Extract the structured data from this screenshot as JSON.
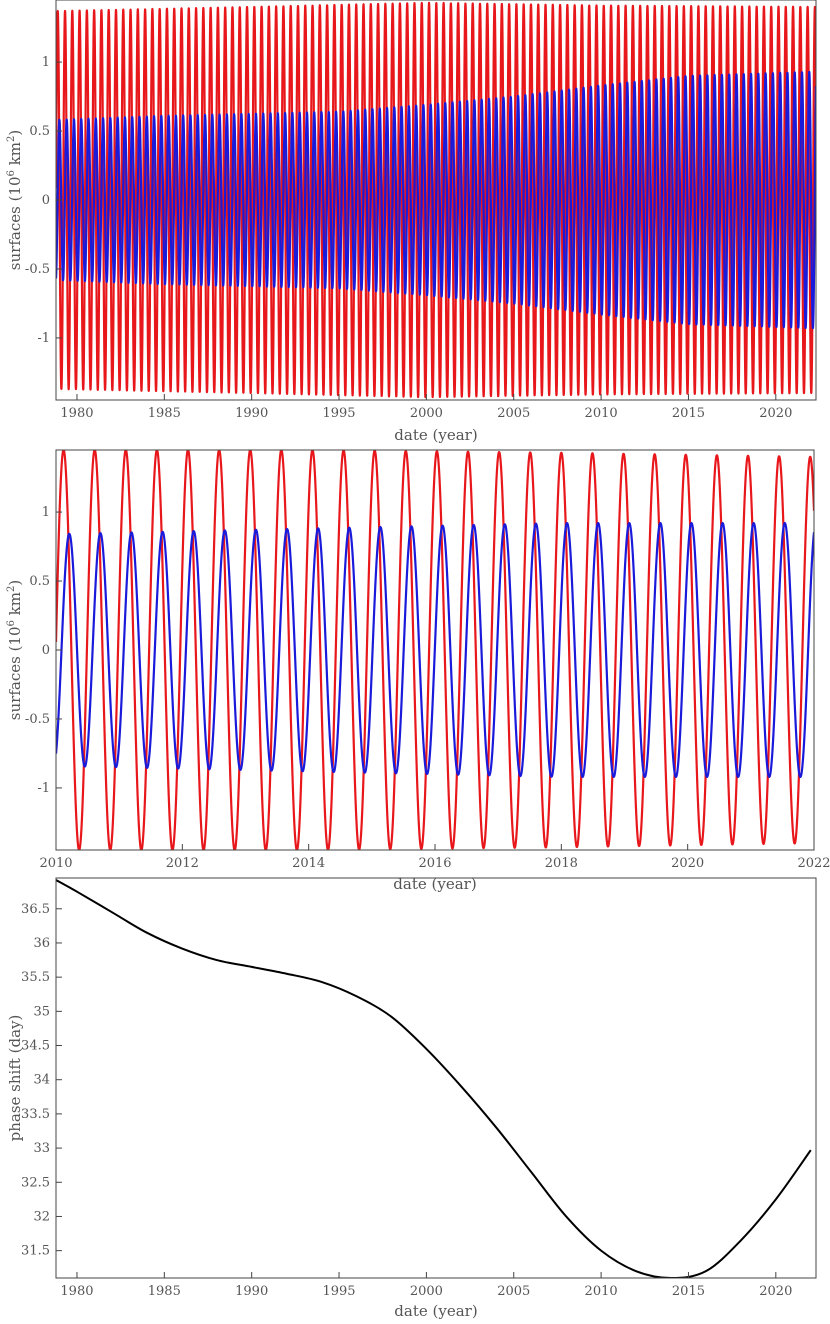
{
  "chart_data": [
    {
      "type": "line",
      "title": "",
      "xlabel": "date (year)",
      "ylabel": "surfaces (10^6 km^2)",
      "ylabel_base": "surfaces (10",
      "ylabel_exp1": "6",
      "ylabel_mid": " km",
      "ylabel_exp2": "2",
      "ylabel_end": ")",
      "xlim": [
        1978.8,
        2022.3
      ],
      "ylim": [
        -1.45,
        1.45
      ],
      "xticks": [
        1980,
        1985,
        1990,
        1995,
        2000,
        2005,
        2010,
        2015,
        2020
      ],
      "yticks": [
        -1,
        -0.5,
        0,
        0.5,
        1
      ],
      "grid": false,
      "series": [
        {
          "color": "#e8171b",
          "period_years": 0.4167,
          "phase_offset_years": 0.1,
          "amplitude": [
            [
              1978.8,
              1.37
            ],
            [
              1990,
              1.4
            ],
            [
              2000,
              1.43
            ],
            [
              2010,
              1.41
            ],
            [
              2022.3,
              1.4
            ]
          ]
        },
        {
          "color": "#1a1adb",
          "period_years": 0.4167,
          "phase_offset_years": 0.195,
          "amplitude": [
            [
              1978.8,
              0.58
            ],
            [
              1985,
              0.61
            ],
            [
              1995,
              0.64
            ],
            [
              2000,
              0.69
            ],
            [
              2005,
              0.75
            ],
            [
              2010,
              0.83
            ],
            [
              2015,
              0.9
            ],
            [
              2022.3,
              0.93
            ]
          ]
        }
      ]
    },
    {
      "type": "line",
      "title": "",
      "xlabel": "date (year)",
      "ylabel": "surfaces (10^6 km^2)",
      "ylabel_base": "surfaces (10",
      "ylabel_exp1": "6",
      "ylabel_mid": " km",
      "ylabel_exp2": "2",
      "ylabel_end": ")",
      "xlim": [
        2010,
        2022
      ],
      "ylim": [
        -1.45,
        1.45
      ],
      "xticks": [
        2010,
        2012,
        2014,
        2016,
        2018,
        2020,
        2022
      ],
      "yticks": [
        -1,
        -0.5,
        0,
        0.5,
        1
      ],
      "grid": false,
      "series": [
        {
          "color": "#e8171b",
          "period_years": 0.4925,
          "phase_offset_years": 0.12,
          "amplitude": [
            [
              2010,
              1.45
            ],
            [
              2014,
              1.45
            ],
            [
              2016,
              1.44
            ],
            [
              2018,
              1.43
            ],
            [
              2022,
              1.4
            ]
          ]
        },
        {
          "color": "#1a1adb",
          "period_years": 0.4925,
          "phase_offset_years": 0.21,
          "amplitude": [
            [
              2010,
              0.84
            ],
            [
              2012,
              0.86
            ],
            [
              2014,
              0.88
            ],
            [
              2016,
              0.9
            ],
            [
              2018,
              0.92
            ],
            [
              2022,
              0.92
            ]
          ]
        }
      ]
    },
    {
      "type": "line",
      "title": "",
      "xlabel": "date (year)",
      "ylabel": "phase shift (day)",
      "xlim": [
        1978.8,
        2022.3
      ],
      "ylim": [
        31.1,
        36.95
      ],
      "xticks": [
        1980,
        1985,
        1990,
        1995,
        2000,
        2005,
        2010,
        2015,
        2020
      ],
      "yticks": [
        31.5,
        32,
        32.5,
        33,
        33.5,
        34,
        34.5,
        35,
        35.5,
        36,
        36.5
      ],
      "grid": false,
      "series": [
        {
          "color": "#000000",
          "x": [
            1978.8,
            1980,
            1982,
            1984,
            1986,
            1988,
            1990,
            1992,
            1994,
            1996,
            1998,
            2000,
            2002,
            2004,
            2006,
            2008,
            2010,
            2012,
            2014,
            2016,
            2018,
            2020,
            2022
          ],
          "y": [
            36.92,
            36.75,
            36.45,
            36.15,
            35.92,
            35.75,
            35.65,
            35.55,
            35.43,
            35.22,
            34.92,
            34.45,
            33.9,
            33.3,
            32.65,
            32.0,
            31.5,
            31.2,
            31.1,
            31.2,
            31.65,
            32.25,
            32.97
          ]
        }
      ]
    }
  ]
}
